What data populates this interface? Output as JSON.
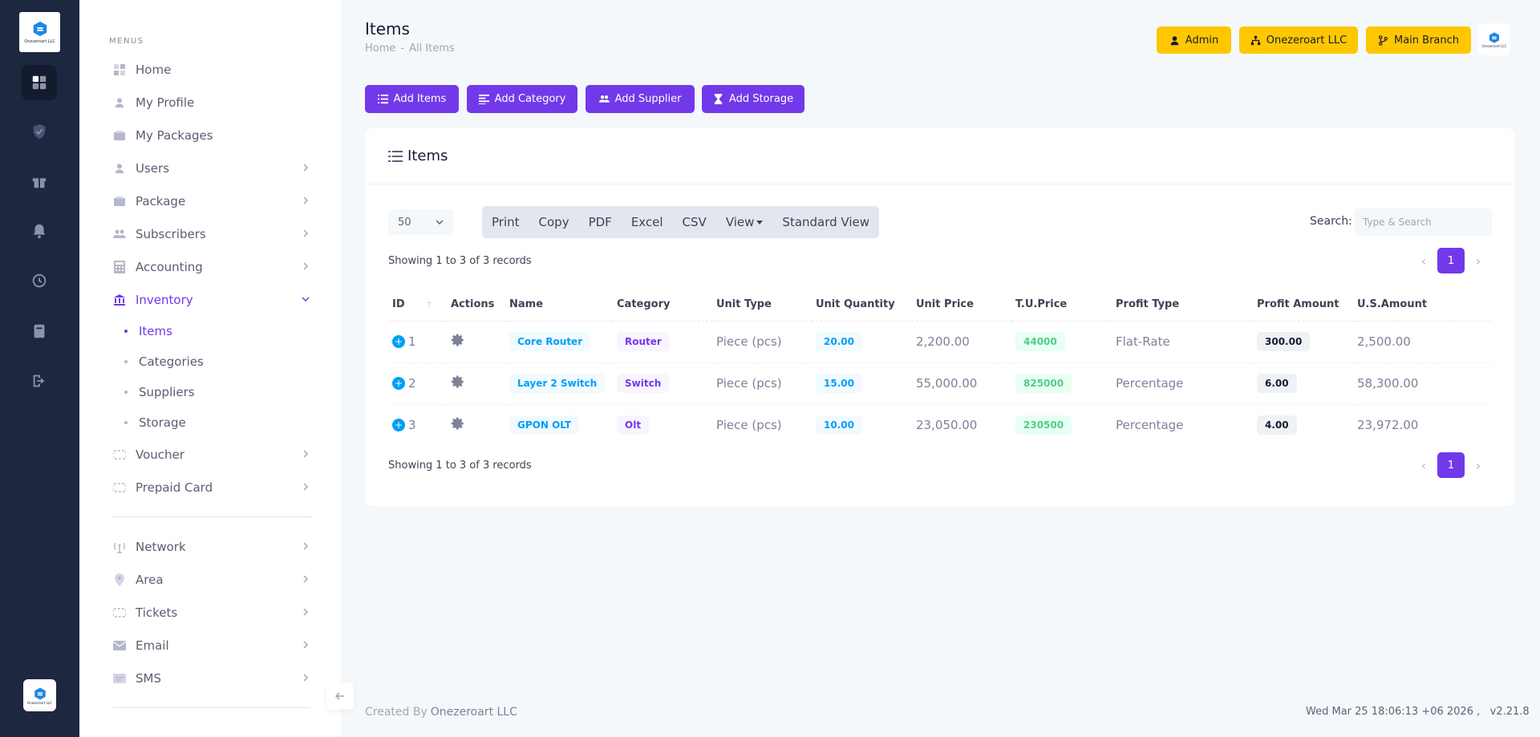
{
  "app": {
    "brand_name": "Onezeroart LLC",
    "brand_short": "Onezeroart LLC"
  },
  "colors": {
    "primary": "#7239ea",
    "warning": "#ffc700",
    "rail": "#1e2740",
    "info": "#009ef7",
    "success": "#50cd89"
  },
  "rail": {
    "icons": [
      "dashboard-icon",
      "shield-check-icon",
      "gift-icon",
      "bell-icon",
      "history-icon",
      "book-icon",
      "logout-icon"
    ]
  },
  "sidebar": {
    "menus_title": "MENUS",
    "items": [
      {
        "label": "Home",
        "icon": "grid-icon"
      },
      {
        "label": "My Profile",
        "icon": "user-icon"
      },
      {
        "label": "My Packages",
        "icon": "package-icon"
      },
      {
        "label": "Users",
        "icon": "user-icon"
      },
      {
        "label": "Package",
        "icon": "package-icon"
      },
      {
        "label": "Subscribers",
        "icon": "group-icon"
      },
      {
        "label": "Accounting",
        "icon": "calculator-icon"
      },
      {
        "label": "Inventory",
        "icon": "bank-icon"
      }
    ],
    "inventory_sub": [
      "Items",
      "Categories",
      "Suppliers",
      "Storage"
    ],
    "items_after": [
      {
        "label": "Voucher",
        "icon": "voucher-icon"
      },
      {
        "label": "Prepaid Card",
        "icon": "card-icon"
      }
    ],
    "items_network": [
      {
        "label": "Network",
        "icon": "antenna-icon"
      },
      {
        "label": "Area",
        "icon": "pin-icon"
      },
      {
        "label": "Tickets",
        "icon": "ticket-icon"
      },
      {
        "label": "Email",
        "icon": "mail-icon"
      },
      {
        "label": "SMS",
        "icon": "sms-icon"
      }
    ]
  },
  "header": {
    "title": "Items",
    "breadcrumb_home": "Home",
    "breadcrumb_sep": "-",
    "breadcrumb_current": "All Items",
    "admin_label": "Admin",
    "company_label": "Onezeroart LLC",
    "branch_label": "Main Branch"
  },
  "toolbar": {
    "add_items": "Add Items",
    "add_category": "Add Category",
    "add_supplier": "Add Supplier",
    "add_storage": "Add Storage"
  },
  "card": {
    "title": "Items",
    "page_length": "50",
    "export_buttons": [
      "Print",
      "Copy",
      "PDF",
      "Excel",
      "CSV",
      "View",
      "Standard View"
    ],
    "search_label": "Search:",
    "search_placeholder": "Type & Search",
    "showing_top": "Showing 1 to 3 of 3 records",
    "showing_bottom": "Showing 1 to 3 of 3 records",
    "page": "1",
    "prev": "‹",
    "next": "›"
  },
  "table": {
    "columns": [
      "ID",
      "Actions",
      "Name",
      "Category",
      "Unit Type",
      "Unit Quantity",
      "Unit Price",
      "T.U.Price",
      "Profit Type",
      "Profit Amount",
      "U.S.Amount"
    ],
    "rows": [
      {
        "id": "1",
        "name": "Core Router",
        "category": "Router",
        "unit_type": "Piece (pcs)",
        "unit_quantity": "20.00",
        "unit_price": "2,200.00",
        "tu_price": "44000",
        "profit_type": "Flat-Rate",
        "profit_amount": "300.00",
        "us_amount": "2,500.00"
      },
      {
        "id": "2",
        "name": "Layer 2 Switch",
        "category": "Switch",
        "unit_type": "Piece (pcs)",
        "unit_quantity": "15.00",
        "unit_price": "55,000.00",
        "tu_price": "825000",
        "profit_type": "Percentage",
        "profit_amount": "6.00",
        "us_amount": "58,300.00"
      },
      {
        "id": "3",
        "name": "GPON OLT",
        "category": "Olt",
        "unit_type": "Piece (pcs)",
        "unit_quantity": "10.00",
        "unit_price": "23,050.00",
        "tu_price": "230500",
        "profit_type": "Percentage",
        "profit_amount": "4.00",
        "us_amount": "23,972.00"
      }
    ]
  },
  "footer": {
    "created_by": "Created By",
    "company": "Onezeroart LLC",
    "datetime": "Wed Mar 25 18:06:13 +06 2026 ,",
    "version": "v2.21.8"
  }
}
